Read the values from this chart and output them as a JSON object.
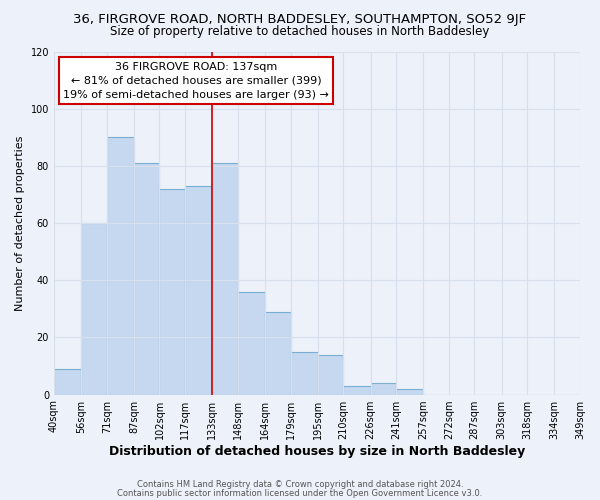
{
  "title_line1": "36, FIRGROVE ROAD, NORTH BADDESLEY, SOUTHAMPTON, SO52 9JF",
  "title_line2": "Size of property relative to detached houses in North Baddesley",
  "xlabel": "Distribution of detached houses by size in North Baddesley",
  "ylabel": "Number of detached properties",
  "bar_edges": [
    40,
    56,
    71,
    87,
    102,
    117,
    133,
    148,
    164,
    179,
    195,
    210,
    226,
    241,
    257,
    272,
    287,
    303,
    318,
    334,
    349
  ],
  "bar_heights": [
    9,
    60,
    90,
    81,
    72,
    73,
    81,
    36,
    29,
    15,
    14,
    3,
    4,
    2,
    0,
    0,
    0,
    0,
    0,
    0
  ],
  "bar_color": "#c5d8ef",
  "bar_edgecolor": "#7aafd4",
  "vline_x": 133,
  "vline_color": "#cc0000",
  "annotation_title": "36 FIRGROVE ROAD: 137sqm",
  "annotation_line1": "← 81% of detached houses are smaller (399)",
  "annotation_line2": "19% of semi-detached houses are larger (93) →",
  "annotation_box_edgecolor": "#cc0000",
  "ylim": [
    0,
    120
  ],
  "yticks": [
    0,
    20,
    40,
    60,
    80,
    100,
    120
  ],
  "tick_labels": [
    "40sqm",
    "56sqm",
    "71sqm",
    "87sqm",
    "102sqm",
    "117sqm",
    "133sqm",
    "148sqm",
    "164sqm",
    "179sqm",
    "195sqm",
    "210sqm",
    "226sqm",
    "241sqm",
    "257sqm",
    "272sqm",
    "287sqm",
    "303sqm",
    "318sqm",
    "334sqm",
    "349sqm"
  ],
  "footer_line1": "Contains HM Land Registry data © Crown copyright and database right 2024.",
  "footer_line2": "Contains public sector information licensed under the Open Government Licence v3.0.",
  "background_color": "#edf1f9",
  "grid_color": "#d8e0ee",
  "title1_fontsize": 9.5,
  "title2_fontsize": 8.5,
  "xlabel_fontsize": 9,
  "ylabel_fontsize": 8,
  "tick_fontsize": 7,
  "annotation_fontsize": 8,
  "footer_fontsize": 6
}
